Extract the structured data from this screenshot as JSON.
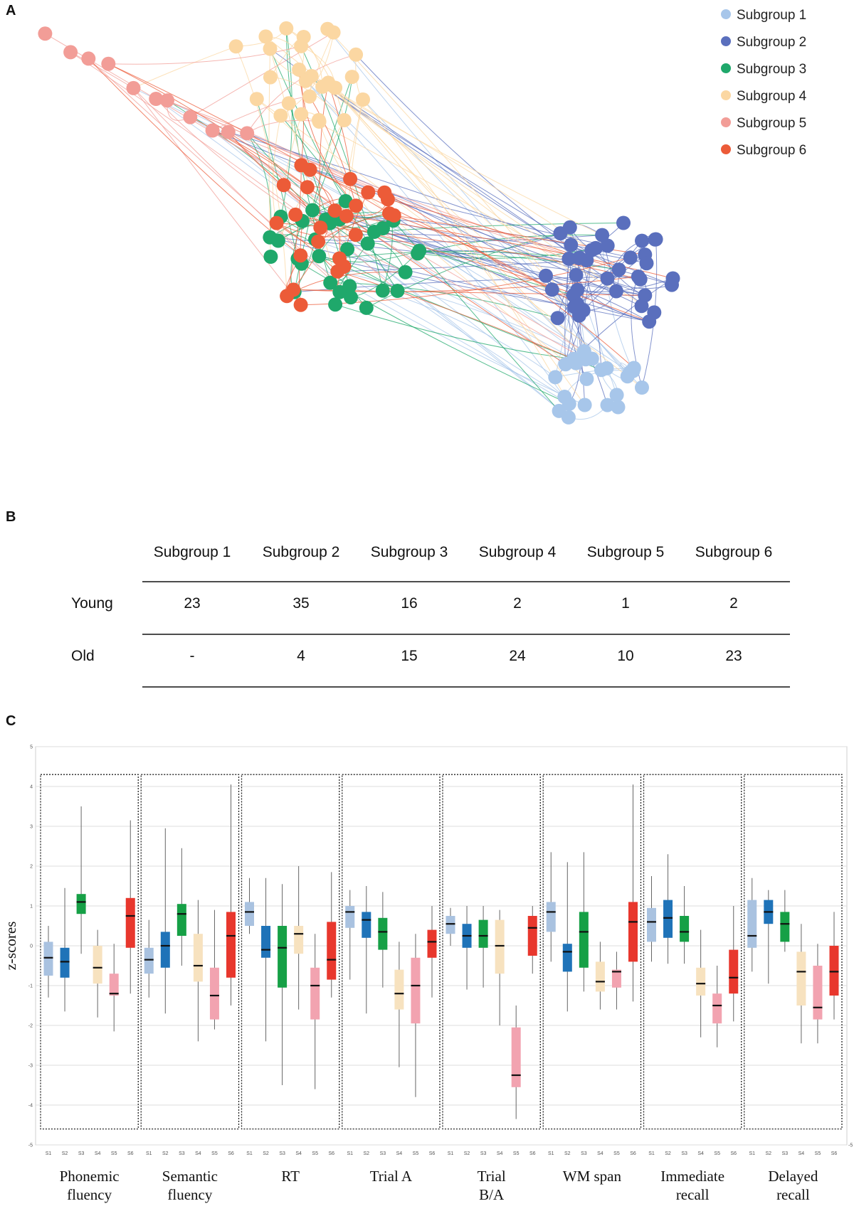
{
  "panels": {
    "a": "A",
    "b": "B",
    "c": "C"
  },
  "colors": {
    "sg1": "#a7c6ea",
    "sg2": "#5a6fbd",
    "sg3": "#1fa86b",
    "sg4": "#fbd7a2",
    "sg5": "#f29d97",
    "sg6": "#ec5b38",
    "box1": "#a9c2e0",
    "box2": "#1f73b8",
    "box3": "#16a046",
    "box4": "#f7e2bf",
    "box5": "#f2a3b0",
    "box6": "#e8372d"
  },
  "legend": [
    "Subgroup 1",
    "Subgroup 2",
    "Subgroup 3",
    "Subgroup 4",
    "Subgroup 5",
    "Subgroup 6"
  ],
  "table": {
    "headers": [
      "Subgroup 1",
      "Subgroup 2",
      "Subgroup 3",
      "Subgroup 4",
      "Subgroup 5",
      "Subgroup 6"
    ],
    "rows": [
      {
        "label": "Young",
        "values": [
          "23",
          "35",
          "16",
          "2",
          "1",
          "2"
        ]
      },
      {
        "label": "Old",
        "values": [
          "-",
          "4",
          "15",
          "24",
          "10",
          "23"
        ]
      }
    ]
  },
  "chart_data": [
    {
      "type": "network",
      "title": "",
      "legend": [
        "Subgroup 1",
        "Subgroup 2",
        "Subgroup 3",
        "Subgroup 4",
        "Subgroup 5",
        "Subgroup 6"
      ],
      "node_counts": {
        "Subgroup 1": 23,
        "Subgroup 2": 39,
        "Subgroup 3": 31,
        "Subgroup 4": 26,
        "Subgroup 5": 11,
        "Subgroup 6": 25
      }
    },
    {
      "type": "box",
      "ylabel": "z-scores",
      "ylim": [
        -5,
        5
      ],
      "yticks": [
        -5,
        -4,
        -3,
        -2,
        -1,
        0,
        1,
        2,
        3,
        4,
        5
      ],
      "group_tick_labels": [
        "S1",
        "S2",
        "S3",
        "S4",
        "S5",
        "S6"
      ],
      "categories": [
        "Phonemic fluency",
        "Semantic fluency",
        "RT",
        "Trial A",
        "Trial B/A",
        "WM span",
        "Immediate recall",
        "Delayed recall"
      ],
      "boxes": [
        [
          [
            -1.3,
            -0.75,
            -0.3,
            0.1,
            0.5
          ],
          [
            -1.65,
            -0.8,
            -0.4,
            -0.05,
            1.45
          ],
          [
            -0.2,
            0.8,
            1.1,
            1.3,
            3.5
          ],
          [
            -1.8,
            -0.95,
            -0.55,
            0.0,
            0.4
          ],
          [
            -2.15,
            -1.25,
            -1.2,
            -0.7,
            0.05
          ],
          [
            -1.2,
            -0.05,
            0.75,
            1.2,
            3.15
          ]
        ],
        [
          [
            -1.3,
            -0.7,
            -0.35,
            -0.05,
            0.65
          ],
          [
            -1.7,
            -0.55,
            0.0,
            0.35,
            2.95
          ],
          [
            -0.5,
            0.25,
            0.8,
            1.05,
            2.45
          ],
          [
            -2.4,
            -0.9,
            -0.5,
            0.3,
            1.15
          ],
          [
            -2.1,
            -1.85,
            -1.25,
            -0.55,
            0.9
          ],
          [
            -1.5,
            -0.8,
            0.25,
            0.85,
            4.05
          ]
        ],
        [
          [
            0.3,
            0.5,
            0.85,
            1.1,
            1.7
          ],
          [
            -2.4,
            -0.3,
            -0.1,
            0.5,
            1.7
          ],
          [
            -3.5,
            -1.05,
            -0.05,
            0.5,
            1.55
          ],
          [
            -1.6,
            -0.2,
            0.3,
            0.5,
            2.0
          ],
          [
            -3.6,
            -1.85,
            -1.0,
            -0.55,
            0.3
          ],
          [
            -1.3,
            -0.85,
            -0.35,
            0.6,
            1.85
          ]
        ],
        [
          [
            -0.85,
            0.45,
            0.85,
            1.0,
            1.4
          ],
          [
            -1.7,
            0.2,
            0.65,
            0.85,
            1.5
          ],
          [
            -1.05,
            -0.1,
            0.35,
            0.7,
            1.35
          ],
          [
            -3.05,
            -1.6,
            -1.2,
            -0.6,
            0.1
          ],
          [
            -3.8,
            -1.95,
            -1.0,
            -0.3,
            0.3
          ],
          [
            -1.3,
            -0.3,
            0.1,
            0.4,
            1.0
          ]
        ],
        [
          [
            0.0,
            0.3,
            0.55,
            0.75,
            0.95
          ],
          [
            -1.1,
            -0.05,
            0.25,
            0.55,
            1.0
          ],
          [
            -1.05,
            -0.05,
            0.25,
            0.65,
            1.0
          ],
          [
            -2.0,
            -0.7,
            0.0,
            0.65,
            0.9
          ],
          [
            -4.35,
            -3.55,
            -3.25,
            -2.05,
            -1.5
          ],
          [
            -0.7,
            -0.25,
            0.45,
            0.75,
            1.0
          ]
        ],
        [
          [
            -0.4,
            0.35,
            0.85,
            1.1,
            2.35
          ],
          [
            -1.65,
            -0.65,
            -0.15,
            0.05,
            2.1
          ],
          [
            -1.15,
            -0.55,
            0.35,
            0.85,
            2.35
          ],
          [
            -1.6,
            -1.15,
            -0.9,
            -0.4,
            0.1
          ],
          [
            -1.6,
            -1.05,
            -0.65,
            -0.6,
            -0.15
          ],
          [
            -1.4,
            -0.4,
            0.6,
            1.1,
            4.05
          ]
        ],
        [
          [
            -0.4,
            0.1,
            0.6,
            0.95,
            1.75
          ],
          [
            -0.45,
            0.2,
            0.7,
            1.15,
            2.3
          ],
          [
            -0.45,
            0.1,
            0.35,
            0.75,
            1.5
          ],
          [
            -2.3,
            -1.25,
            -0.95,
            -0.55,
            0.4
          ],
          [
            -2.55,
            -1.95,
            -1.5,
            -1.2,
            -0.5
          ],
          [
            -1.9,
            -1.2,
            -0.8,
            -0.1,
            1.0
          ]
        ],
        [
          [
            -0.65,
            -0.05,
            0.25,
            1.15,
            1.7
          ],
          [
            -0.95,
            0.55,
            0.85,
            1.15,
            1.4
          ],
          [
            -0.15,
            0.1,
            0.55,
            0.85,
            1.4
          ],
          [
            -2.45,
            -1.5,
            -0.65,
            -0.15,
            0.55
          ],
          [
            -2.45,
            -1.85,
            -1.55,
            -0.5,
            0.05
          ],
          [
            -1.85,
            -1.25,
            -0.65,
            0.0,
            0.85
          ]
        ]
      ]
    }
  ]
}
